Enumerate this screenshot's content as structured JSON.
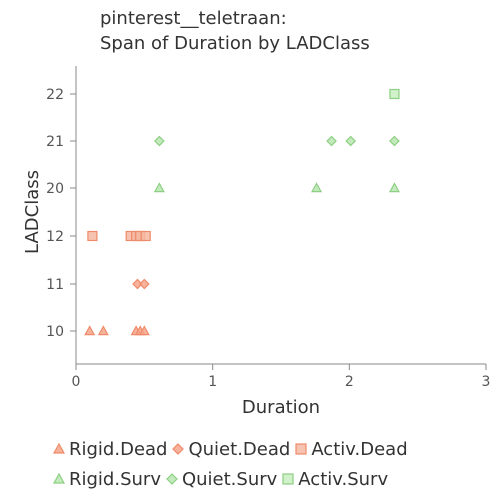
{
  "chart_data": {
    "type": "scatter",
    "title_line1": "pinterest__teletraan:",
    "title_line2": "Span of Duration by LADClass",
    "xlabel": "Duration",
    "ylabel": "LADClass",
    "xlim": [
      0,
      3
    ],
    "x_ticks": [
      "0",
      "1",
      "2",
      "3"
    ],
    "y_categories": [
      "10",
      "11",
      "12",
      "20",
      "21",
      "22"
    ],
    "grid": false,
    "legend_position": "bottom",
    "series": [
      {
        "name": "Rigid.Dead",
        "marker": "triangle",
        "color": "#f4a48a",
        "stroke": "#ef8a6a",
        "points": [
          {
            "x": 0.1,
            "y": "10"
          },
          {
            "x": 0.2,
            "y": "10"
          },
          {
            "x": 0.44,
            "y": "10"
          },
          {
            "x": 0.47,
            "y": "10"
          },
          {
            "x": 0.5,
            "y": "10"
          }
        ]
      },
      {
        "name": "Quiet.Dead",
        "marker": "diamond",
        "color": "#f4a48a",
        "stroke": "#ef8a6a",
        "points": [
          {
            "x": 0.45,
            "y": "11"
          },
          {
            "x": 0.5,
            "y": "11"
          }
        ]
      },
      {
        "name": "Activ.Dead",
        "marker": "square",
        "color": "#f4b8a2",
        "stroke": "#ef8a6a",
        "points": [
          {
            "x": 0.12,
            "y": "12"
          },
          {
            "x": 0.4,
            "y": "12"
          },
          {
            "x": 0.44,
            "y": "12"
          },
          {
            "x": 0.47,
            "y": "12"
          },
          {
            "x": 0.51,
            "y": "12"
          }
        ]
      },
      {
        "name": "Rigid.Surv",
        "marker": "triangle",
        "color": "#b8e6b0",
        "stroke": "#8ccf82",
        "points": [
          {
            "x": 0.61,
            "y": "20"
          },
          {
            "x": 1.76,
            "y": "20"
          },
          {
            "x": 2.33,
            "y": "20"
          }
        ]
      },
      {
        "name": "Quiet.Surv",
        "marker": "diamond",
        "color": "#b8e6b0",
        "stroke": "#8ccf82",
        "points": [
          {
            "x": 0.61,
            "y": "21"
          },
          {
            "x": 1.87,
            "y": "21"
          },
          {
            "x": 2.01,
            "y": "21"
          },
          {
            "x": 2.33,
            "y": "21"
          }
        ]
      },
      {
        "name": "Activ.Surv",
        "marker": "square",
        "color": "#c8eec0",
        "stroke": "#8ccf82",
        "points": [
          {
            "x": 2.33,
            "y": "22"
          }
        ]
      }
    ]
  }
}
